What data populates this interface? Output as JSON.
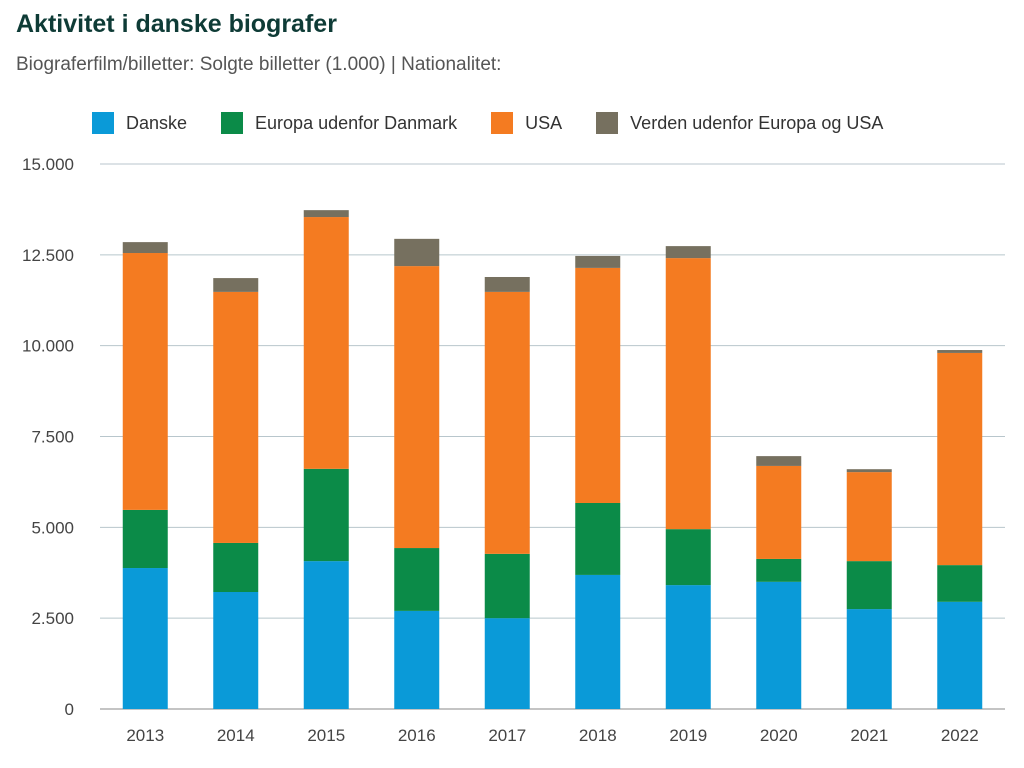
{
  "title": "Aktivitet i danske biografer",
  "subtitle": "Biograferfilm/billetter: Solgte billetter (1.000) | Nationalitet:",
  "chart_data": {
    "type": "bar",
    "stacked": true,
    "categories": [
      "2013",
      "2014",
      "2015",
      "2016",
      "2017",
      "2018",
      "2019",
      "2020",
      "2021",
      "2022"
    ],
    "series": [
      {
        "name": "Danske",
        "color": "#0a9ad8",
        "values": [
          3880,
          3220,
          4070,
          2700,
          2500,
          3690,
          3410,
          3500,
          2750,
          2950
        ]
      },
      {
        "name": "Europa udenfor Danmark",
        "color": "#0b8b48",
        "values": [
          1600,
          1350,
          2540,
          1730,
          1770,
          1980,
          1540,
          630,
          1320,
          1010
        ]
      },
      {
        "name": "USA",
        "color": "#f47b21",
        "values": [
          7070,
          6910,
          6930,
          7760,
          7210,
          6470,
          7460,
          2560,
          2450,
          5840
        ]
      },
      {
        "name": "Verden udenfor Europa og USA",
        "color": "#76705f",
        "values": [
          300,
          380,
          190,
          750,
          410,
          330,
          330,
          270,
          80,
          80
        ]
      }
    ],
    "ylim": [
      0,
      15000
    ],
    "yticks": [
      0,
      2500,
      5000,
      7500,
      10000,
      12500,
      15000
    ],
    "ytick_labels": [
      "0",
      "2.500",
      "5.000",
      "7.500",
      "10.000",
      "12.500",
      "15.000"
    ],
    "grid": true,
    "legend_position": "top"
  }
}
